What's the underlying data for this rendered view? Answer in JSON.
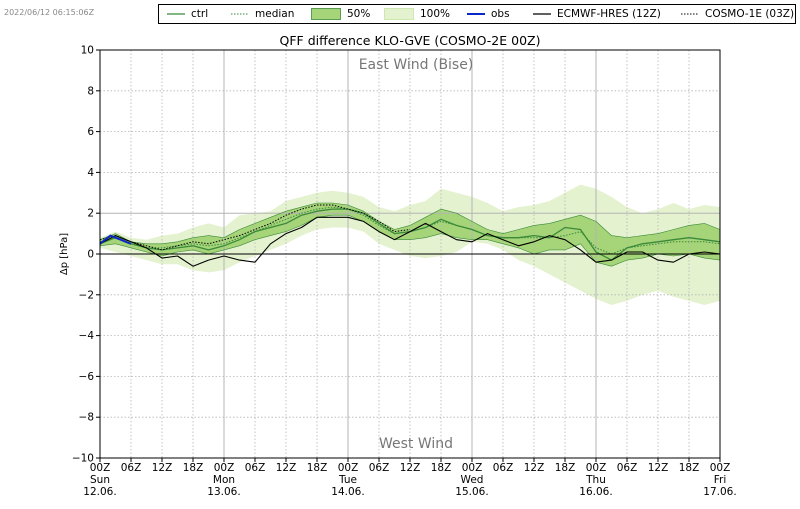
{
  "timestamp": "2022/06/12 06:15:06Z",
  "legend": [
    {
      "key": "ctrl",
      "label": "ctrl",
      "style": "ctrl"
    },
    {
      "key": "median",
      "label": "median",
      "style": "median"
    },
    {
      "key": "p50",
      "label": "50%",
      "style": "band50"
    },
    {
      "key": "p100",
      "label": "100%",
      "style": "band100"
    },
    {
      "key": "obs",
      "label": "obs",
      "style": "obs"
    },
    {
      "key": "hres",
      "label": "ECMWF-HRES (12Z)",
      "style": "hres"
    },
    {
      "key": "cosmo1",
      "label": "COSMO-1E (03Z)",
      "style": "cosmo1"
    }
  ],
  "colors": {
    "ctrl": "#3a8a3a",
    "band50": "#a6d478",
    "band100": "#e4f2cf",
    "obs": "#0a28c8",
    "hres": "#000000",
    "grid": "#b4b4b4"
  },
  "chart_data": {
    "type": "line",
    "title": "QFF difference KLO-GVE (COSMO-2E 00Z)",
    "ylabel": "Δp [hPa]",
    "annotations": {
      "top": "East Wind (Bise)",
      "bottom": "West Wind"
    },
    "ylim": [
      -10,
      10
    ],
    "yticks": [
      "10",
      "8",
      "6",
      "4",
      "2",
      "0",
      "−2",
      "−4",
      "−6",
      "−8",
      "−10"
    ],
    "xlim_hours": [
      0,
      120
    ],
    "xticks": [
      "00Z",
      "06Z",
      "12Z",
      "18Z",
      "00Z",
      "06Z",
      "12Z",
      "18Z",
      "00Z",
      "06Z",
      "12Z",
      "18Z",
      "00Z",
      "06Z",
      "12Z",
      "18Z",
      "00Z",
      "06Z",
      "12Z",
      "18Z",
      "00Z"
    ],
    "day_labels": [
      {
        "day": "Sun",
        "date": "12.06."
      },
      {
        "day": "Mon",
        "date": "13.06."
      },
      {
        "day": "Tue",
        "date": "14.06."
      },
      {
        "day": "Wed",
        "date": "15.06."
      },
      {
        "day": "Thu",
        "date": "16.06."
      },
      {
        "day": "Fri",
        "date": "17.06."
      }
    ],
    "x": [
      0,
      3,
      6,
      9,
      12,
      15,
      18,
      21,
      24,
      27,
      30,
      33,
      36,
      39,
      42,
      45,
      48,
      51,
      54,
      57,
      60,
      63,
      66,
      69,
      72,
      75,
      78,
      81,
      84,
      87,
      90,
      93,
      96,
      99,
      102,
      105,
      108,
      111,
      114,
      117,
      120
    ],
    "series": [
      {
        "key": "p100_upper",
        "values": [
          0.8,
          1.1,
          0.8,
          0.7,
          0.9,
          1.0,
          1.3,
          1.5,
          1.3,
          1.9,
          2.0,
          2.1,
          2.6,
          2.8,
          3.0,
          3.1,
          3.0,
          2.8,
          2.3,
          2.1,
          2.4,
          2.6,
          3.2,
          3.0,
          2.8,
          2.5,
          2.1,
          2.3,
          2.4,
          2.6,
          3.0,
          3.4,
          3.2,
          2.8,
          2.3,
          2.0,
          2.2,
          2.5,
          2.2,
          2.4,
          2.3
        ]
      },
      {
        "key": "p100_lower",
        "values": [
          0.3,
          0.1,
          -0.1,
          -0.3,
          -0.5,
          -0.5,
          -0.8,
          -0.9,
          -0.8,
          -0.4,
          -0.1,
          0.2,
          0.5,
          0.9,
          1.2,
          1.3,
          1.3,
          1.1,
          0.5,
          0.2,
          -0.1,
          -0.2,
          -0.1,
          0.1,
          0.6,
          0.5,
          0.2,
          -0.3,
          -0.6,
          -1.0,
          -1.4,
          -1.8,
          -2.2,
          -2.5,
          -2.3,
          -2.0,
          -1.8,
          -2.1,
          -2.3,
          -2.5,
          -2.3
        ]
      },
      {
        "key": "p50_upper",
        "values": [
          0.7,
          1.0,
          0.6,
          0.5,
          0.5,
          0.6,
          0.8,
          0.9,
          0.8,
          1.2,
          1.5,
          1.8,
          2.1,
          2.3,
          2.5,
          2.5,
          2.4,
          2.1,
          1.6,
          1.2,
          1.4,
          1.8,
          2.2,
          2.0,
          1.6,
          1.2,
          1.0,
          1.2,
          1.4,
          1.5,
          1.7,
          1.9,
          1.6,
          0.9,
          0.8,
          0.9,
          1.0,
          1.2,
          1.4,
          1.5,
          1.2
        ]
      },
      {
        "key": "p50_lower",
        "values": [
          0.4,
          0.5,
          0.3,
          0.1,
          -0.1,
          0.1,
          0.2,
          0.0,
          0.2,
          0.4,
          0.7,
          0.9,
          1.1,
          1.4,
          1.8,
          1.9,
          1.9,
          1.6,
          1.1,
          0.7,
          0.7,
          0.8,
          1.0,
          0.8,
          0.7,
          0.7,
          0.5,
          0.3,
          0.0,
          0.2,
          0.2,
          0.5,
          -0.4,
          -0.6,
          -0.3,
          -0.2,
          0.0,
          -0.1,
          0.0,
          -0.2,
          -0.3
        ]
      },
      {
        "key": "ctrl",
        "name": "ctrl",
        "values": [
          0.5,
          0.8,
          0.5,
          0.3,
          0.2,
          0.3,
          0.4,
          0.2,
          0.4,
          0.7,
          1.1,
          1.3,
          1.5,
          1.9,
          2.1,
          2.2,
          2.2,
          2.0,
          1.5,
          1.0,
          1.1,
          1.3,
          1.7,
          1.4,
          1.2,
          0.9,
          0.8,
          0.8,
          0.9,
          0.8,
          1.3,
          1.2,
          0.1,
          -0.3,
          0.3,
          0.5,
          0.6,
          0.7,
          0.8,
          0.7,
          0.6
        ]
      },
      {
        "key": "median",
        "name": "median",
        "values": [
          0.6,
          0.8,
          0.5,
          0.3,
          0.3,
          0.4,
          0.5,
          0.4,
          0.5,
          0.8,
          1.1,
          1.4,
          1.7,
          2.0,
          2.2,
          2.3,
          2.2,
          1.9,
          1.4,
          1.0,
          1.1,
          1.3,
          1.6,
          1.4,
          1.2,
          0.9,
          0.8,
          0.8,
          0.8,
          0.8,
          0.9,
          1.1,
          0.3,
          0.0,
          0.3,
          0.4,
          0.5,
          0.6,
          0.6,
          0.6,
          0.5
        ]
      },
      {
        "key": "hres",
        "name": "ECMWF-HRES (12Z)",
        "values": [
          0.5,
          0.9,
          0.6,
          0.3,
          -0.2,
          -0.1,
          -0.6,
          -0.3,
          -0.1,
          -0.3,
          -0.4,
          0.5,
          1.0,
          1.3,
          1.8,
          1.8,
          1.8,
          1.6,
          1.1,
          0.7,
          1.1,
          1.5,
          1.1,
          0.7,
          0.6,
          1.0,
          0.7,
          0.4,
          0.6,
          0.9,
          0.7,
          0.2,
          -0.4,
          -0.3,
          0.1,
          0.1,
          -0.3,
          -0.4,
          0.0,
          0.1,
          0.0
        ]
      },
      {
        "key": "cosmo1",
        "name": "COSMO-1E (03Z)",
        "values": [
          0.7,
          0.9,
          0.6,
          0.4,
          0.2,
          0.4,
          0.6,
          0.5,
          0.7,
          0.9,
          1.2,
          1.5,
          1.9,
          2.2,
          2.4,
          2.4,
          2.2,
          2.0,
          1.6,
          1.1,
          1.2,
          null,
          null,
          null,
          null,
          null,
          null,
          null,
          null,
          null,
          null,
          null,
          null,
          null,
          null,
          null,
          null,
          null,
          null,
          null,
          null
        ]
      },
      {
        "key": "obs",
        "name": "obs",
        "x": [
          0,
          1,
          2,
          3,
          4,
          5,
          6
        ],
        "values": [
          0.5,
          0.7,
          0.9,
          0.8,
          0.7,
          0.6,
          0.5
        ]
      }
    ]
  }
}
